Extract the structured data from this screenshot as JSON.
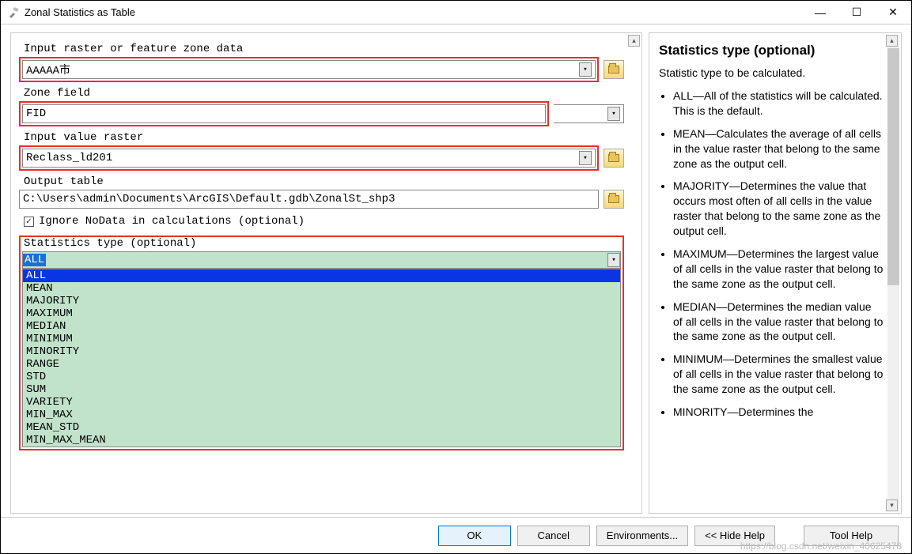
{
  "window": {
    "title": "Zonal Statistics as Table",
    "controls": {
      "min": "—",
      "max": "☐",
      "close": "✕"
    }
  },
  "form": {
    "zone_data": {
      "label": "Input raster or feature zone data",
      "value": "AAAAA市"
    },
    "zone_field": {
      "label": "Zone field",
      "value": "FID"
    },
    "value_raster": {
      "label": "Input value raster",
      "value": "Reclass_ld201"
    },
    "output_table": {
      "label": "Output table",
      "value": "C:\\Users\\admin\\Documents\\ArcGIS\\Default.gdb\\ZonalSt_shp3"
    },
    "ignore_nodata": {
      "label": "Ignore NoData in calculations (optional)",
      "checked": true
    },
    "stats_type": {
      "label": "Statistics type (optional)",
      "selected": "ALL",
      "options": [
        "ALL",
        "MEAN",
        "MAJORITY",
        "MAXIMUM",
        "MEDIAN",
        "MINIMUM",
        "MINORITY",
        "RANGE",
        "STD",
        "SUM",
        "VARIETY",
        "MIN_MAX",
        "MEAN_STD",
        "MIN_MAX_MEAN"
      ]
    }
  },
  "help": {
    "title": "Statistics type (optional)",
    "desc": "Statistic type to be calculated.",
    "items": [
      "ALL—All of the statistics will be calculated. This is the default.",
      "MEAN—Calculates the average of all cells in the value raster that belong to the same zone as the output cell.",
      "MAJORITY—Determines the value that occurs most often of all cells in the value raster that belong to the same zone as the output cell.",
      "MAXIMUM—Determines the largest value of all cells in the value raster that belong to the same zone as the output cell.",
      "MEDIAN—Determines the median value of all cells in the value raster that belong to the same zone as the output cell.",
      "MINIMUM—Determines the smallest value of all cells in the value raster that belong to the same zone as the output cell.",
      "MINORITY—Determines the"
    ]
  },
  "footer": {
    "ok": "OK",
    "cancel": "Cancel",
    "env": "Environments...",
    "hide": "<< Hide Help",
    "toolhelp": "Tool Help",
    "watermark": "https://blog.csdn.net/weixin_40625478"
  },
  "colors": {
    "highlight_border": "#ee2c2c",
    "dropdown_bg": "#c1e3cb",
    "dropdown_sel_bg": "#0a35e3",
    "combo_selection": "#1a6fd6",
    "primary_border": "#0078d7",
    "primary_bg": "#e5f1fb"
  }
}
